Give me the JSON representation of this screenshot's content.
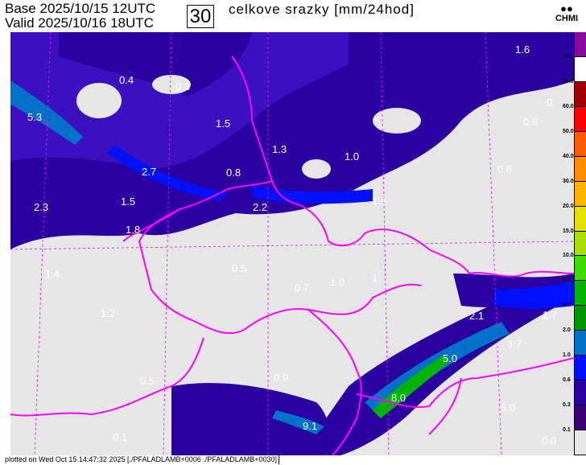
{
  "header": {
    "base_label": "Base",
    "base_value": "2025/10/15 12UTC",
    "valid_label": "Valid",
    "valid_value": "2025/10/16 18UTC",
    "lead_hours": "30",
    "title": "celkove srazky [mm/24hod]",
    "logo_text": "CHMI"
  },
  "legend": {
    "colors": [
      "#8a0aa0",
      "#ffffff",
      "#a00000",
      "#ff0000",
      "#ff5a00",
      "#ff8c00",
      "#ffb400",
      "#e6e000",
      "#aade00",
      "#3cdc00",
      "#00b400",
      "#009600",
      "#0070c8",
      "#0010ff",
      "#2a00a0",
      "#3c0070",
      "#e6e6e6"
    ],
    "labels": [
      "100",
      "80.0",
      "60.0",
      "50.0",
      "40.0",
      "30.0",
      "20.0",
      "15.0",
      "10.0",
      "6.0",
      "4.0",
      "2.0",
      "1.0",
      "0.6",
      "0.3",
      "0.1"
    ]
  },
  "map": {
    "land_color": "#e6e6e6",
    "border_color": "#ff00ff",
    "precip_color": "#2a00a0",
    "values": [
      "0.4",
      "0.3",
      "5.3",
      "1.5",
      "1.3",
      "1.0",
      "0.8",
      "0.6",
      "2.7",
      "0.8",
      "1.9",
      "2.2",
      "2.3",
      "1.5",
      "1.8",
      "1.4",
      "0.5",
      "0.7",
      "1.0",
      "1",
      "1.2",
      "2.1",
      "1.7",
      "3.7",
      "5.0",
      "0.5",
      "0.9",
      "8.0",
      "6.0",
      "9.1",
      "1.6",
      "0.",
      "0.0",
      "0.1"
    ]
  },
  "footer": {
    "text": "plotted on Wed Oct 15 14:47:32 2025 [./PFALADLAMB+0006 ./PFALADLAMB+0030]"
  }
}
